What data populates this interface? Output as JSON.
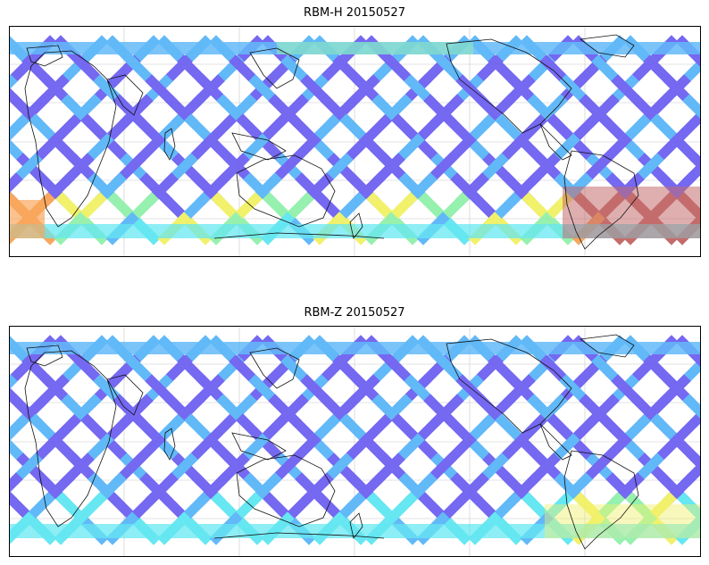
{
  "panels": [
    {
      "title": "RBM-H 20150527",
      "colors": {
        "track_low": "#6a5cf0",
        "track_mid": "#55b4f8",
        "track_cyan": "#5ae6f0",
        "track_green": "#8ef0a8",
        "track_yellow": "#f0f060",
        "track_orange": "#f8a050",
        "track_high": "#c06060"
      }
    },
    {
      "title": "RBM-Z 20150527",
      "colors": {
        "track_low": "#6a5cf0",
        "track_mid": "#55b4f8",
        "track_cyan": "#5ae6f0",
        "track_green": "#8ef0a8",
        "track_yellow": "#f0f060"
      }
    }
  ]
}
